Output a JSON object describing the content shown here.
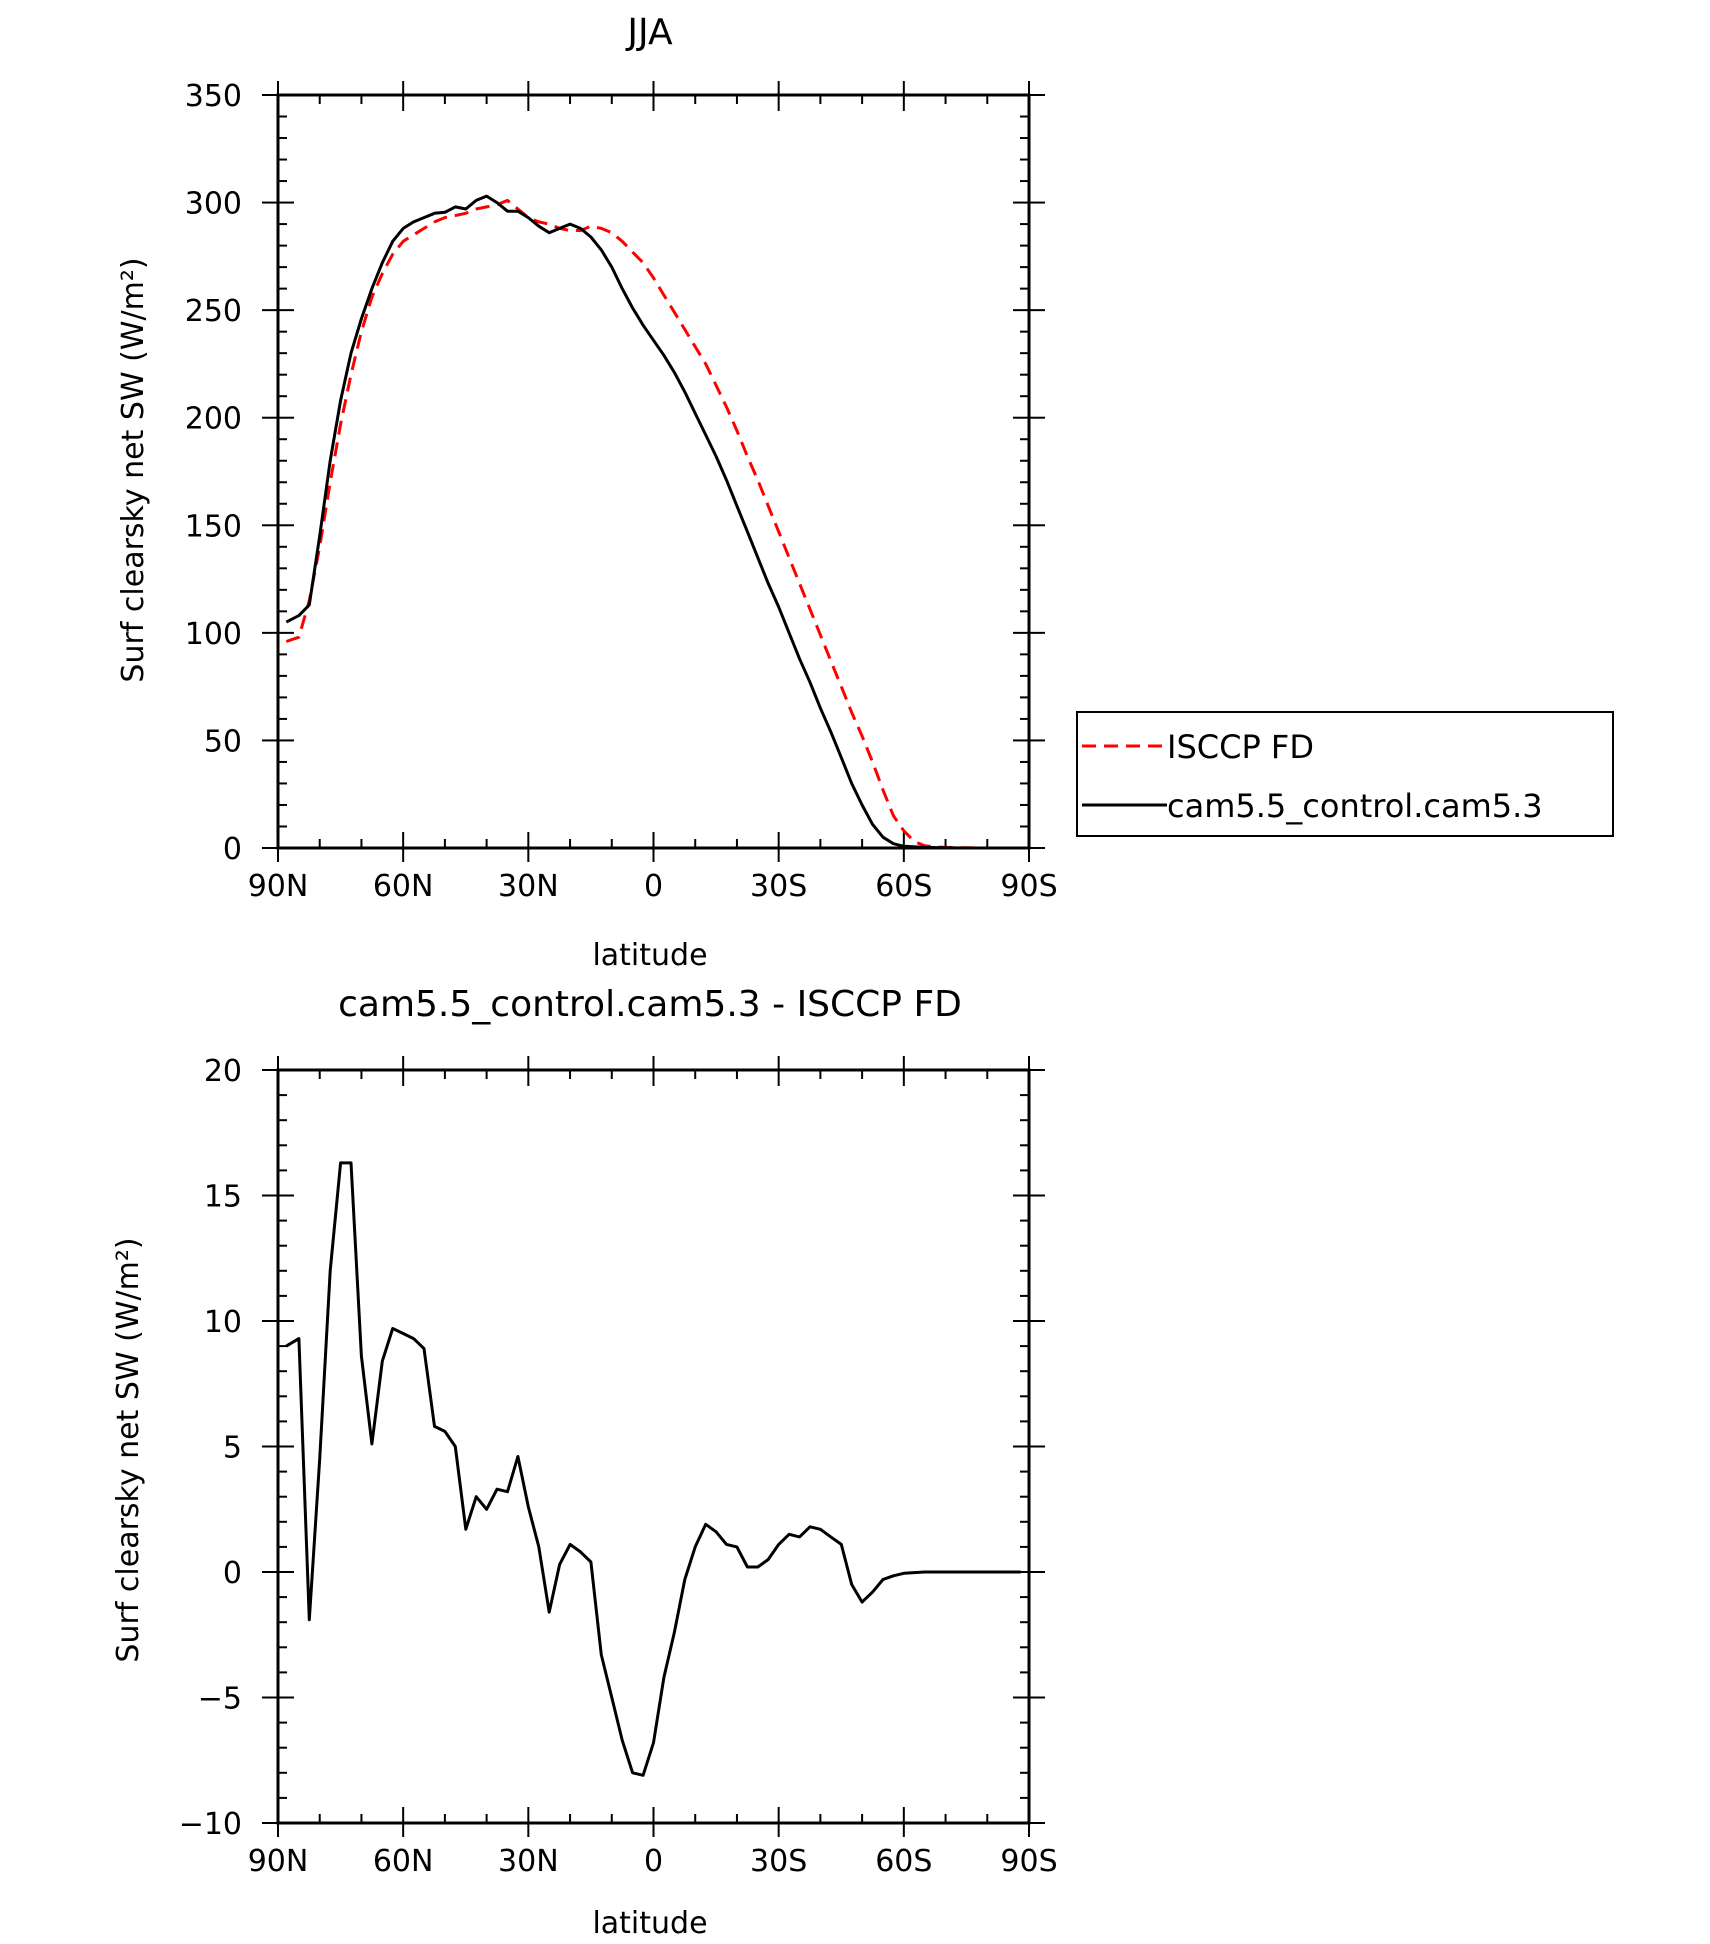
{
  "chart_data": [
    {
      "type": "line",
      "title": "JJA",
      "xlabel": "latitude",
      "ylabel": "Surf clearsky net SW (W/m²)",
      "xlim": [
        90,
        -90
      ],
      "ylim": [
        0,
        350
      ],
      "x_ticks": [
        90,
        60,
        30,
        0,
        -30,
        -60,
        -90
      ],
      "x_tick_labels": [
        "90N",
        "60N",
        "30N",
        "0",
        "30S",
        "60S",
        "90S"
      ],
      "y_ticks": [
        0,
        50,
        100,
        150,
        200,
        250,
        300,
        350
      ],
      "y_tick_labels": [
        "0",
        "50",
        "100",
        "150",
        "200",
        "250",
        "300",
        "350"
      ],
      "grid": false,
      "legend_position": "right",
      "series": [
        {
          "name": "ISCCP FD",
          "color": "#ff0000",
          "dash": "dashed",
          "points": [
            [
              88,
              96
            ],
            [
              85,
              98
            ],
            [
              82.5,
              115
            ],
            [
              80,
              140
            ],
            [
              77.5,
              170
            ],
            [
              75,
              197
            ],
            [
              72.5,
              220
            ],
            [
              70,
              240
            ],
            [
              67.5,
              256
            ],
            [
              65,
              267
            ],
            [
              62.5,
              276
            ],
            [
              60,
              282
            ],
            [
              57.5,
              285
            ],
            [
              55,
              288
            ],
            [
              52.5,
              291
            ],
            [
              50,
              293
            ],
            [
              47.5,
              294
            ],
            [
              45,
              295
            ],
            [
              42.5,
              297
            ],
            [
              40,
              298
            ],
            [
              37.5,
              299
            ],
            [
              35,
              301
            ],
            [
              32.5,
              297
            ],
            [
              30,
              293
            ],
            [
              27.5,
              291
            ],
            [
              25,
              290
            ],
            [
              22.5,
              288
            ],
            [
              20,
              287
            ],
            [
              17.5,
              287
            ],
            [
              15,
              289
            ],
            [
              12.5,
              288
            ],
            [
              10,
              286
            ],
            [
              7.5,
              282
            ],
            [
              5,
              277
            ],
            [
              2.5,
              272
            ],
            [
              0,
              265
            ],
            [
              -2.5,
              257
            ],
            [
              -5,
              249
            ],
            [
              -7.5,
              241
            ],
            [
              -10,
              233
            ],
            [
              -12.5,
              225
            ],
            [
              -15,
              215
            ],
            [
              -17.5,
              205
            ],
            [
              -20,
              194
            ],
            [
              -22.5,
              182
            ],
            [
              -25,
              171
            ],
            [
              -27.5,
              159
            ],
            [
              -30,
              147
            ],
            [
              -32.5,
              135
            ],
            [
              -35,
              123
            ],
            [
              -37.5,
              111
            ],
            [
              -40,
              99
            ],
            [
              -42.5,
              87
            ],
            [
              -45,
              75
            ],
            [
              -47.5,
              63
            ],
            [
              -50,
              52
            ],
            [
              -52.5,
              40
            ],
            [
              -55,
              27
            ],
            [
              -57.5,
              15
            ],
            [
              -60,
              8
            ],
            [
              -62.5,
              3
            ],
            [
              -65,
              1
            ],
            [
              -67.5,
              0.5
            ],
            [
              -70,
              0.3
            ],
            [
              -75,
              0.1
            ],
            [
              -80,
              0
            ],
            [
              -85,
              0
            ],
            [
              -88,
              0
            ]
          ]
        },
        {
          "name": "cam5.5_control.cam5.3",
          "color": "#000000",
          "dash": "solid",
          "points": [
            [
              88,
              105
            ],
            [
              85,
              108
            ],
            [
              82.5,
              113
            ],
            [
              80,
              145
            ],
            [
              77.5,
              180
            ],
            [
              75,
              208
            ],
            [
              72.5,
              230
            ],
            [
              70,
              246
            ],
            [
              67.5,
              260
            ],
            [
              65,
              272
            ],
            [
              62.5,
              282
            ],
            [
              60,
              288
            ],
            [
              57.5,
              291
            ],
            [
              55,
              293
            ],
            [
              52.5,
              295
            ],
            [
              50,
              295.5
            ],
            [
              47.5,
              298
            ],
            [
              45,
              297
            ],
            [
              42.5,
              301
            ],
            [
              40,
              303
            ],
            [
              37.5,
              300
            ],
            [
              35,
              296
            ],
            [
              32.5,
              296
            ],
            [
              30,
              293
            ],
            [
              27.5,
              289
            ],
            [
              25,
              286
            ],
            [
              22.5,
              288
            ],
            [
              20,
              290
            ],
            [
              17.5,
              288
            ],
            [
              15,
              284
            ],
            [
              12.5,
              278
            ],
            [
              10,
              270
            ],
            [
              7.5,
              260
            ],
            [
              5,
              251
            ],
            [
              2.5,
              243
            ],
            [
              0,
              236
            ],
            [
              -2.5,
              229
            ],
            [
              -5,
              221
            ],
            [
              -7.5,
              212
            ],
            [
              -10,
              202
            ],
            [
              -12.5,
              192
            ],
            [
              -15,
              182
            ],
            [
              -17.5,
              171
            ],
            [
              -20,
              159
            ],
            [
              -22.5,
              147
            ],
            [
              -25,
              135
            ],
            [
              -27.5,
              123
            ],
            [
              -30,
              112
            ],
            [
              -32.5,
              100
            ],
            [
              -35,
              88
            ],
            [
              -37.5,
              77
            ],
            [
              -40,
              65
            ],
            [
              -42.5,
              54
            ],
            [
              -45,
              42
            ],
            [
              -47.5,
              30
            ],
            [
              -50,
              20
            ],
            [
              -52.5,
              11
            ],
            [
              -55,
              5
            ],
            [
              -57.5,
              2
            ],
            [
              -60,
              0.8
            ],
            [
              -65,
              0.3
            ],
            [
              -70,
              0.1
            ],
            [
              -75,
              0
            ],
            [
              -80,
              0
            ],
            [
              -85,
              0
            ],
            [
              -88,
              0
            ]
          ]
        }
      ]
    },
    {
      "type": "line",
      "title": "cam5.5_control.cam5.3 - ISCCP FD",
      "xlabel": "latitude",
      "ylabel": "Surf clearsky net SW (W/m²)",
      "xlim": [
        90,
        -90
      ],
      "ylim": [
        -10,
        20
      ],
      "x_ticks": [
        90,
        60,
        30,
        0,
        -30,
        -60,
        -90
      ],
      "x_tick_labels": [
        "90N",
        "60N",
        "30N",
        "0",
        "30S",
        "60S",
        "90S"
      ],
      "y_ticks": [
        -10,
        -5,
        0,
        5,
        10,
        15,
        20
      ],
      "y_tick_labels": [
        "−10",
        "−5",
        "0",
        "5",
        "10",
        "15",
        "20"
      ],
      "grid": false,
      "series": [
        {
          "color": "#000000",
          "dash": "solid",
          "points": [
            [
              88,
              9.0
            ],
            [
              85,
              9.3
            ],
            [
              82.5,
              -1.9
            ],
            [
              80,
              4.5
            ],
            [
              77.5,
              12.0
            ],
            [
              75,
              16.3
            ],
            [
              72.5,
              16.3
            ],
            [
              70,
              8.6
            ],
            [
              67.5,
              5.1
            ],
            [
              65,
              8.4
            ],
            [
              62.5,
              9.7
            ],
            [
              60,
              9.5
            ],
            [
              57.5,
              9.3
            ],
            [
              55,
              8.9
            ],
            [
              52.5,
              5.8
            ],
            [
              50,
              5.6
            ],
            [
              47.5,
              5.0
            ],
            [
              45,
              1.7
            ],
            [
              42.5,
              3.0
            ],
            [
              40,
              2.5
            ],
            [
              37.5,
              3.3
            ],
            [
              35,
              3.2
            ],
            [
              32.5,
              4.6
            ],
            [
              30,
              2.6
            ],
            [
              27.5,
              1.0
            ],
            [
              25,
              -1.6
            ],
            [
              22.5,
              0.3
            ],
            [
              20,
              1.1
            ],
            [
              17.5,
              0.8
            ],
            [
              15,
              0.4
            ],
            [
              12.5,
              -3.3
            ],
            [
              10,
              -5.0
            ],
            [
              7.5,
              -6.7
            ],
            [
              5,
              -8.0
            ],
            [
              2.5,
              -8.1
            ],
            [
              0,
              -6.8
            ],
            [
              -2.5,
              -4.2
            ],
            [
              -5,
              -2.4
            ],
            [
              -7.5,
              -0.3
            ],
            [
              -10,
              1.0
            ],
            [
              -12.5,
              1.9
            ],
            [
              -15,
              1.6
            ],
            [
              -17.5,
              1.1
            ],
            [
              -20,
              1.0
            ],
            [
              -22.5,
              0.2
            ],
            [
              -25,
              0.2
            ],
            [
              -27.5,
              0.5
            ],
            [
              -30,
              1.1
            ],
            [
              -32.5,
              1.5
            ],
            [
              -35,
              1.4
            ],
            [
              -37.5,
              1.8
            ],
            [
              -40,
              1.7
            ],
            [
              -42.5,
              1.4
            ],
            [
              -45,
              1.1
            ],
            [
              -47.5,
              -0.5
            ],
            [
              -50,
              -1.2
            ],
            [
              -52.5,
              -0.8
            ],
            [
              -55,
              -0.3
            ],
            [
              -57.5,
              -0.15
            ],
            [
              -60,
              -0.05
            ],
            [
              -65,
              0
            ],
            [
              -70,
              0
            ],
            [
              -75,
              0
            ],
            [
              -80,
              0
            ],
            [
              -85,
              0
            ],
            [
              -88,
              0
            ]
          ]
        }
      ]
    }
  ]
}
